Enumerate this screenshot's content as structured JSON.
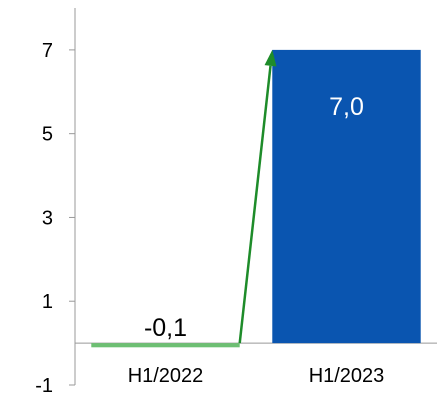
{
  "chart_data": {
    "type": "bar",
    "categories": [
      "H1/2022",
      "H1/2023"
    ],
    "values": [
      -0.1,
      7.0
    ],
    "data_labels": [
      "-0,1",
      "7,0"
    ],
    "ylim": [
      -1,
      8
    ],
    "yticks": [
      -1,
      1,
      3,
      5,
      7
    ],
    "ytick_labels": [
      "-1",
      "1",
      "3",
      "5",
      "7"
    ],
    "title": "",
    "xlabel": "",
    "ylabel": "",
    "grid": false,
    "legend": "none",
    "arrow": {
      "from_category": 0,
      "to_category": 1,
      "color": "#1e8c2a"
    },
    "colors": {
      "bars": [
        "#6dbf73",
        "#0a55b0"
      ],
      "data_labels": [
        "#000000",
        "#ffffff"
      ],
      "axis": "#999999"
    }
  }
}
